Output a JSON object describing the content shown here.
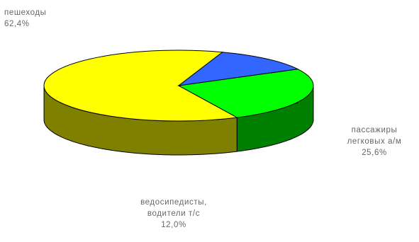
{
  "chart_data": {
    "type": "pie",
    "style": "3d",
    "title": "",
    "slices": [
      {
        "label_lines": [
          "пешеходы"
        ],
        "value": 62.4,
        "value_label": "62,4%",
        "color": "#ffff00",
        "side_color": "#808000"
      },
      {
        "label_lines": [
          "пассажиры",
          "легковых а/м"
        ],
        "value": 25.6,
        "value_label": "25,6%",
        "color": "#00ff00",
        "side_color": "#008000"
      },
      {
        "label_lines": [
          "ведосипедисты,",
          "водители т/с"
        ],
        "value": 12.0,
        "value_label": "12,0%",
        "color": "#3366ff",
        "side_color": "#1f3f8f"
      }
    ],
    "legend": "none",
    "outline_color": "#000000"
  }
}
